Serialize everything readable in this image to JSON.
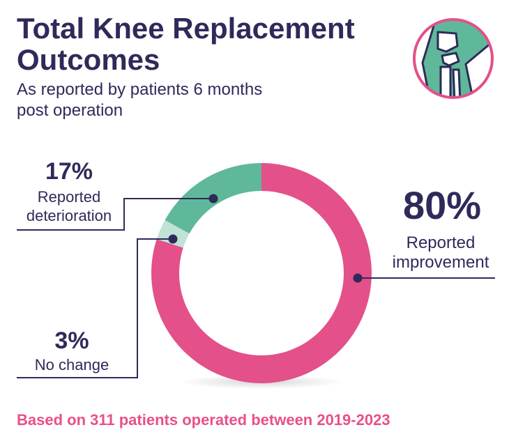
{
  "header": {
    "title_line1": "Total Knee Replacement",
    "title_line2": "Outcomes",
    "subtitle_line1": "As reported by patients 6 months",
    "subtitle_line2": "post operation"
  },
  "footer": {
    "note": "Based on 311 patients operated between 2019-2023"
  },
  "icon": {
    "name": "knee-joint-icon",
    "ring_color": "#e3508a",
    "fill_color": "#5fb89a"
  },
  "chart_data": {
    "type": "pie",
    "style": "donut",
    "start": "top",
    "direction": "clockwise",
    "slices": [
      {
        "value": 80,
        "percent_label": "80%",
        "label_line1": "Reported",
        "label_line2": "improvement",
        "color": "#e3508a"
      },
      {
        "value": 3,
        "percent_label": "3%",
        "label_line1": "No change",
        "label_line2": "",
        "color": "#bfe3d6"
      },
      {
        "value": 17,
        "percent_label": "17%",
        "label_line1": "Reported",
        "label_line2": "deterioration",
        "color": "#5fb89a"
      }
    ]
  }
}
